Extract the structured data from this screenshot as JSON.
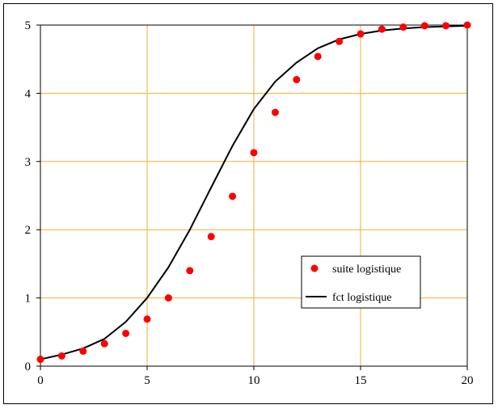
{
  "chart_data": {
    "type": "scatter",
    "title": "",
    "xlabel": "",
    "ylabel": "",
    "xlim": [
      0,
      20
    ],
    "ylim": [
      0,
      5
    ],
    "x_ticks": [
      "0",
      "5",
      "10",
      "15",
      "20"
    ],
    "y_ticks": [
      "0",
      "1",
      "2",
      "3",
      "4",
      "5"
    ],
    "grid": true,
    "legend_position": "center-right",
    "colors": {
      "grid": "#f0b030",
      "points": "#ff0000",
      "line": "#000000",
      "axis": "#000000"
    },
    "series": [
      {
        "name": "suite logistique",
        "type": "scatter",
        "x": [
          0,
          1,
          2,
          3,
          4,
          5,
          6,
          7,
          8,
          9,
          10,
          11,
          12,
          13,
          14,
          15,
          16,
          17,
          18,
          19,
          20
        ],
        "y": [
          0.1,
          0.15,
          0.22,
          0.33,
          0.48,
          0.69,
          1.0,
          1.4,
          1.9,
          2.49,
          3.13,
          3.72,
          4.2,
          4.54,
          4.76,
          4.87,
          4.94,
          4.97,
          4.99,
          4.99,
          5.0
        ]
      },
      {
        "name": "fct logistique",
        "type": "line",
        "x": [
          0,
          1,
          2,
          3,
          4,
          5,
          6,
          7,
          8,
          9,
          10,
          11,
          12,
          13,
          14,
          15,
          16,
          17,
          18,
          19,
          20
        ],
        "y": [
          0.1,
          0.17,
          0.26,
          0.4,
          0.65,
          1.0,
          1.45,
          2.0,
          2.62,
          3.23,
          3.77,
          4.17,
          4.45,
          4.66,
          4.79,
          4.87,
          4.92,
          4.95,
          4.97,
          4.98,
          4.99
        ]
      }
    ]
  }
}
